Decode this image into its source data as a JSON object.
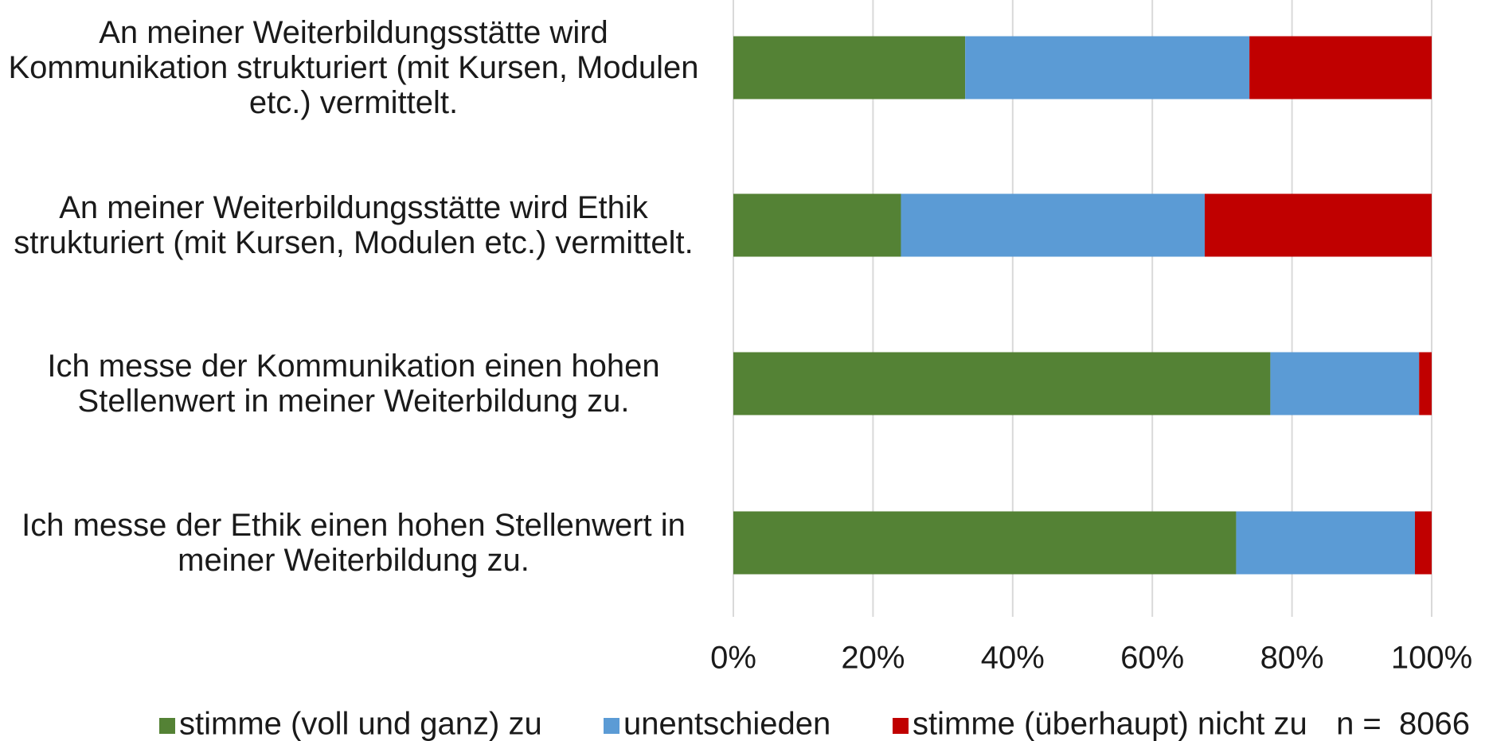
{
  "chart_data": {
    "type": "stacked_barh",
    "categories": [
      "An meiner Weiterbildungsstätte wird Kommunikation strukturiert (mit Kursen, Modulen etc.) vermittelt.",
      "An meiner Weiterbildungsstätte wird Ethik strukturiert (mit Kursen, Modulen etc.) vermittelt.",
      "Ich messe der Kommunikation einen hohen Stellenwert in meiner Weiterbildung zu.",
      "Ich messe der Ethik einen hohen Stellenwert in meiner Weiterbildung zu."
    ],
    "series": [
      {
        "name": "stimme (voll und ganz) zu",
        "color": "#548235",
        "values": [
          33.2,
          24.0,
          76.9,
          72.0
        ]
      },
      {
        "name": "unentschieden",
        "color": "#5b9bd5",
        "values": [
          40.7,
          43.5,
          21.3,
          25.6
        ]
      },
      {
        "name": "stimme (überhaupt) nicht zu",
        "color": "#c00000",
        "values": [
          26.1,
          32.5,
          1.8,
          2.4
        ]
      }
    ],
    "xlim": [
      0,
      100
    ],
    "xticks": [
      {
        "value": 0,
        "label": "0%"
      },
      {
        "value": 20,
        "label": "20%"
      },
      {
        "value": 40,
        "label": "40%"
      },
      {
        "value": 60,
        "label": "60%"
      },
      {
        "value": 80,
        "label": "80%"
      },
      {
        "value": 100,
        "label": "100%"
      }
    ],
    "grid": true,
    "legend": "bottom",
    "annotation": "n =  8066"
  }
}
